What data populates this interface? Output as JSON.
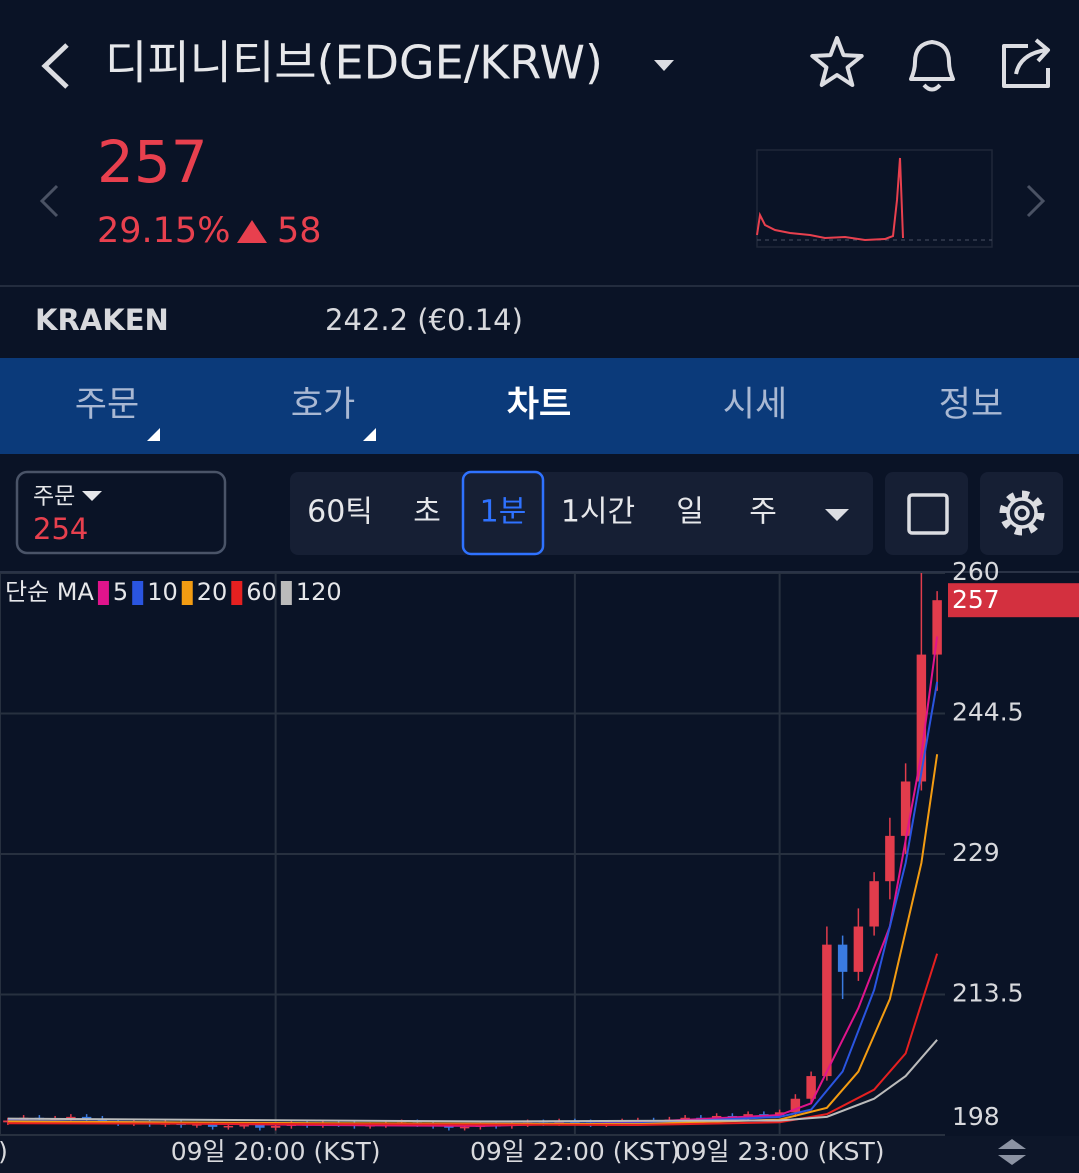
{
  "header": {
    "title": "디피니티브(EDGE/KRW)"
  },
  "quote": {
    "price": 257,
    "change_rate": "29.15%",
    "change": 58
  },
  "exchange": {
    "name": "KRAKEN",
    "price": "242.2 (€0.14)"
  },
  "tabs": [
    "주문",
    "호가",
    "차트",
    "시세",
    "정보"
  ],
  "active_tab": 2,
  "order": {
    "label": "주문",
    "price": 254
  },
  "intervals": [
    "60틱",
    "초",
    "1분",
    "1시간",
    "일",
    "주"
  ],
  "active_interval": 2,
  "chart_data": {
    "type": "candlestick",
    "legend_title": "단순 MA",
    "up_color": "#e23c4c",
    "down_color": "#3a7be0",
    "open": [
      199.4,
      199.6,
      199.9,
      199.7,
      199.8,
      200.0,
      199.8,
      199.5,
      199.3,
      199.4,
      199.2,
      199.3,
      199.1,
      199.2,
      198.9,
      199.0,
      199.1,
      198.8,
      199.0,
      199.2,
      199.1,
      199.3,
      199.2,
      199.0,
      199.1,
      199.3,
      199.4,
      199.2,
      199.0,
      198.8,
      198.9,
      199.1,
      199.0,
      199.2,
      199.4,
      199.3,
      199.5,
      199.4,
      199.2,
      199.3,
      199.5,
      199.6,
      199.4,
      199.7,
      199.9,
      199.8,
      200.1,
      200.0,
      200.3,
      200.2,
      200.5,
      202,
      204.5,
      219,
      216,
      221,
      226,
      231,
      237,
      251
    ],
    "high": [
      199.9,
      200.2,
      200.2,
      200.1,
      200.3,
      200.3,
      200.1,
      199.8,
      199.7,
      199.7,
      199.6,
      199.6,
      199.5,
      199.5,
      199.3,
      199.4,
      199.4,
      199.3,
      199.5,
      199.5,
      199.6,
      199.6,
      199.5,
      199.4,
      199.6,
      199.7,
      199.7,
      199.5,
      199.3,
      199.2,
      199.4,
      199.4,
      199.5,
      199.7,
      199.7,
      199.8,
      199.8,
      199.7,
      199.6,
      199.8,
      199.9,
      199.9,
      200.0,
      200.2,
      200.2,
      200.4,
      200.4,
      200.6,
      200.6,
      200.8,
      202.5,
      205,
      221,
      220,
      223,
      227,
      233,
      239,
      260,
      258
    ],
    "low": [
      199.1,
      199.3,
      199.4,
      199.4,
      199.5,
      199.5,
      199.2,
      199.0,
      199.0,
      198.9,
      198.9,
      198.8,
      198.8,
      198.6,
      198.6,
      198.7,
      198.5,
      198.5,
      198.7,
      198.8,
      198.8,
      198.9,
      198.7,
      198.7,
      198.8,
      199.0,
      198.9,
      198.7,
      198.5,
      198.5,
      198.6,
      198.7,
      198.7,
      198.9,
      199.0,
      199.0,
      199.1,
      198.9,
      198.9,
      199.0,
      199.2,
      199.1,
      199.1,
      199.4,
      199.5,
      199.5,
      199.7,
      199.7,
      199.9,
      199.9,
      200,
      201.5,
      204,
      213,
      215,
      220,
      224,
      229,
      236,
      247
    ],
    "close": [
      199.6,
      199.9,
      199.7,
      199.8,
      200.0,
      199.8,
      199.5,
      199.3,
      199.4,
      199.2,
      199.3,
      199.1,
      199.2,
      198.9,
      199.0,
      199.1,
      198.8,
      199.0,
      199.2,
      199.1,
      199.3,
      199.2,
      199.0,
      199.1,
      199.3,
      199.4,
      199.2,
      199.0,
      198.8,
      198.9,
      199.1,
      199.0,
      199.2,
      199.4,
      199.3,
      199.5,
      199.4,
      199.2,
      199.3,
      199.5,
      199.6,
      199.4,
      199.7,
      199.9,
      199.8,
      200.1,
      200.0,
      200.3,
      200.2,
      200.5,
      202,
      204.5,
      219,
      216,
      221,
      226,
      231,
      237,
      251,
      257
    ],
    "series": [
      {
        "name": "5",
        "color": "#e0148c",
        "x": [
          0,
          10,
          20,
          30,
          40,
          49,
          51,
          52,
          54,
          56,
          58,
          59
        ],
        "values": [
          199.6,
          199.3,
          199.1,
          199.0,
          199.4,
          200.2,
          201.5,
          205,
          212,
          221,
          240,
          253
        ]
      },
      {
        "name": "10",
        "color": "#2a55e0",
        "x": [
          0,
          20,
          40,
          49,
          51,
          53,
          55,
          57,
          59
        ],
        "values": [
          199.6,
          199.2,
          199.3,
          200,
          200.8,
          205,
          214,
          228,
          248
        ]
      },
      {
        "name": "20",
        "color": "#f39c12",
        "x": [
          0,
          20,
          40,
          49,
          52,
          54,
          56,
          58,
          59
        ],
        "values": [
          199.5,
          199.3,
          199.2,
          199.7,
          201,
          205,
          213,
          228,
          240
        ]
      },
      {
        "name": "60",
        "color": "#e52020",
        "x": [
          0,
          20,
          40,
          49,
          52,
          55,
          57,
          59
        ],
        "values": [
          199.3,
          199.2,
          199.1,
          199.4,
          200.3,
          203,
          207,
          218
        ]
      },
      {
        "name": "120",
        "color": "#bbbbbb",
        "x": [
          0,
          30,
          49,
          52,
          55,
          57,
          59
        ],
        "values": [
          199.8,
          199.5,
          199.6,
          200,
          202,
          204.5,
          208.5
        ]
      }
    ],
    "xlim": [
      -0.5,
      59.5
    ],
    "xticks": [
      {
        "value": -0.5,
        "label": ")"
      },
      {
        "value": 17,
        "label": "09일 20:00 (KST)"
      },
      {
        "value": 36,
        "label": "09일 22:00 (KST)"
      },
      {
        "value": 49,
        "label": "09일 23:00 (KST)"
      }
    ],
    "ylim": [
      198,
      260
    ],
    "yticks": [
      198,
      213.5,
      229,
      244.5,
      260
    ],
    "grid": true,
    "last_price": 257,
    "last_price_color": "#d3303f"
  }
}
